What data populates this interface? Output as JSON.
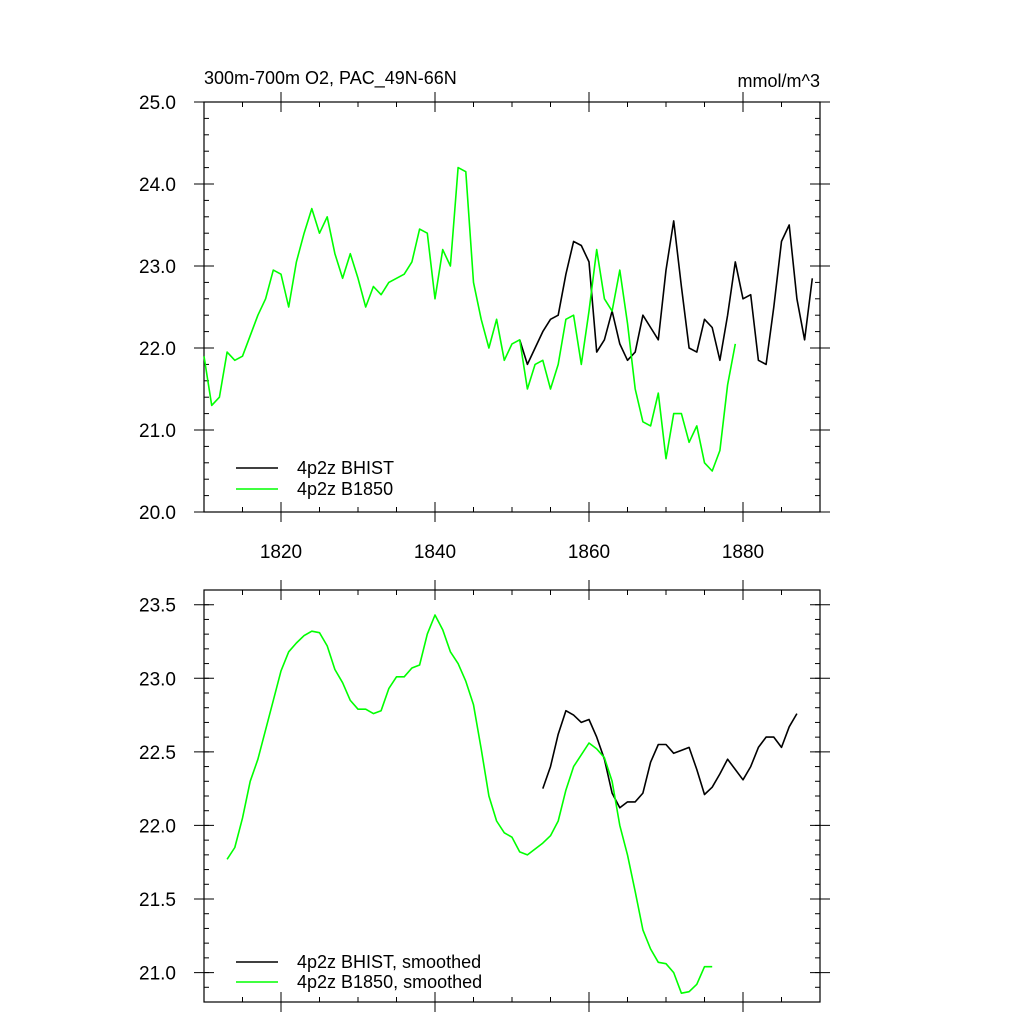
{
  "chart_data": [
    {
      "type": "line",
      "title": "300m-700m O2, PAC_49N-66N",
      "units": "mmol/m^3",
      "xlim": [
        1810,
        1890
      ],
      "ylim": [
        20.0,
        25.0
      ],
      "xticks": [
        1820,
        1840,
        1860,
        1880
      ],
      "yticks": [
        20.0,
        21.0,
        22.0,
        23.0,
        24.0,
        25.0
      ],
      "xtick_labels": [
        "1820",
        "1840",
        "1860",
        "1880"
      ],
      "ytick_labels": [
        "20.0",
        "21.0",
        "22.0",
        "23.0",
        "24.0",
        "25.0"
      ],
      "legend_position": "bottom-left",
      "series": [
        {
          "name": "4p2z BHIST",
          "color": "#000000",
          "x": [
            1851,
            1852,
            1853,
            1854,
            1855,
            1856,
            1857,
            1858,
            1859,
            1860,
            1861,
            1862,
            1863,
            1864,
            1865,
            1866,
            1867,
            1868,
            1869,
            1870,
            1871,
            1872,
            1873,
            1874,
            1875,
            1876,
            1877,
            1878,
            1879,
            1880,
            1881,
            1882,
            1883,
            1884,
            1885,
            1886,
            1887,
            1888,
            1889
          ],
          "y": [
            22.1,
            21.8,
            22.0,
            22.2,
            22.35,
            22.4,
            22.9,
            23.3,
            23.25,
            23.05,
            21.95,
            22.1,
            22.45,
            22.05,
            21.85,
            21.95,
            22.4,
            22.25,
            22.1,
            22.95,
            23.55,
            22.75,
            22.0,
            21.95,
            22.35,
            22.25,
            21.85,
            22.4,
            23.05,
            22.6,
            22.65,
            21.85,
            21.8,
            22.5,
            23.3,
            23.5,
            22.6,
            22.1,
            22.85
          ]
        },
        {
          "name": "4p2z B1850",
          "color": "#00ff00",
          "x": [
            1810,
            1811,
            1812,
            1813,
            1814,
            1815,
            1816,
            1817,
            1818,
            1819,
            1820,
            1821,
            1822,
            1823,
            1824,
            1825,
            1826,
            1827,
            1828,
            1829,
            1830,
            1831,
            1832,
            1833,
            1834,
            1835,
            1836,
            1837,
            1838,
            1839,
            1840,
            1841,
            1842,
            1843,
            1844,
            1845,
            1846,
            1847,
            1848,
            1849,
            1850,
            1851,
            1852,
            1853,
            1854,
            1855,
            1856,
            1857,
            1858,
            1859,
            1860,
            1861,
            1862,
            1863,
            1864,
            1865,
            1866,
            1867,
            1868,
            1869,
            1870,
            1871,
            1872,
            1873,
            1874,
            1875,
            1876,
            1877,
            1878,
            1879
          ],
          "y": [
            21.9,
            21.3,
            21.4,
            21.95,
            21.85,
            21.9,
            22.15,
            22.4,
            22.6,
            22.95,
            22.9,
            22.5,
            23.05,
            23.4,
            23.7,
            23.4,
            23.6,
            23.15,
            22.85,
            23.15,
            22.85,
            22.5,
            22.75,
            22.65,
            22.8,
            22.85,
            22.9,
            23.05,
            23.45,
            23.4,
            22.6,
            23.2,
            23.0,
            24.2,
            24.15,
            22.8,
            22.35,
            22.0,
            22.35,
            21.85,
            22.05,
            22.1,
            21.5,
            21.8,
            21.85,
            21.5,
            21.8,
            22.35,
            22.4,
            21.8,
            22.45,
            23.2,
            22.6,
            22.45,
            22.95,
            22.3,
            21.5,
            21.1,
            21.05,
            21.45,
            20.65,
            21.2,
            21.2,
            20.85,
            21.05,
            20.6,
            20.5,
            20.75,
            21.55,
            22.05
          ]
        }
      ]
    },
    {
      "type": "line",
      "title": "",
      "xlim": [
        1810,
        1890
      ],
      "ylim": [
        20.8,
        23.6
      ],
      "xticks": [
        1820,
        1840,
        1860,
        1880
      ],
      "yticks": [
        21.0,
        21.5,
        22.0,
        22.5,
        23.0,
        23.5
      ],
      "ytick_labels": [
        "21.0",
        "21.5",
        "22.0",
        "22.5",
        "23.0",
        "23.5"
      ],
      "legend_position": "bottom-left",
      "series": [
        {
          "name": "4p2z BHIST, smoothed",
          "color": "#000000",
          "x": [
            1854,
            1855,
            1856,
            1857,
            1858,
            1859,
            1860,
            1861,
            1862,
            1863,
            1864,
            1865,
            1866,
            1867,
            1868,
            1869,
            1870,
            1871,
            1872,
            1873,
            1874,
            1875,
            1876,
            1877,
            1878,
            1879,
            1880,
            1881,
            1882,
            1883,
            1884,
            1885,
            1886,
            1887
          ],
          "y": [
            22.25,
            22.4,
            22.62,
            22.78,
            22.75,
            22.7,
            22.72,
            22.6,
            22.45,
            22.22,
            22.12,
            22.16,
            22.16,
            22.22,
            22.43,
            22.55,
            22.55,
            22.49,
            22.51,
            22.53,
            22.38,
            22.21,
            22.26,
            22.35,
            22.45,
            22.38,
            22.31,
            22.4,
            22.53,
            22.6,
            22.6,
            22.53,
            22.67,
            22.76
          ]
        },
        {
          "name": "4p2z B1850, smoothed",
          "color": "#00ff00",
          "x": [
            1813,
            1814,
            1815,
            1816,
            1817,
            1818,
            1819,
            1820,
            1821,
            1822,
            1823,
            1824,
            1825,
            1826,
            1827,
            1828,
            1829,
            1830,
            1831,
            1832,
            1833,
            1834,
            1835,
            1836,
            1837,
            1838,
            1839,
            1840,
            1841,
            1842,
            1843,
            1844,
            1845,
            1846,
            1847,
            1848,
            1849,
            1850,
            1851,
            1852,
            1853,
            1854,
            1855,
            1856,
            1857,
            1858,
            1859,
            1860,
            1861,
            1862,
            1863,
            1864,
            1865,
            1866,
            1867,
            1868,
            1869,
            1870,
            1871,
            1872,
            1873,
            1874,
            1875,
            1876
          ],
          "y": [
            21.77,
            21.85,
            22.05,
            22.3,
            22.45,
            22.65,
            22.85,
            23.05,
            23.18,
            23.24,
            23.29,
            23.32,
            23.31,
            23.22,
            23.06,
            22.97,
            22.85,
            22.79,
            22.79,
            22.76,
            22.78,
            22.93,
            23.01,
            23.01,
            23.07,
            23.09,
            23.3,
            23.43,
            23.33,
            23.18,
            23.1,
            22.98,
            22.82,
            22.52,
            22.2,
            22.03,
            21.95,
            21.92,
            21.82,
            21.8,
            21.84,
            21.88,
            21.93,
            22.03,
            22.24,
            22.4,
            22.48,
            22.56,
            22.52,
            22.46,
            22.3,
            22.0,
            21.8,
            21.55,
            21.29,
            21.16,
            21.07,
            21.06,
            21.0,
            20.86,
            20.87,
            20.92,
            21.04,
            21.04
          ]
        }
      ]
    }
  ]
}
